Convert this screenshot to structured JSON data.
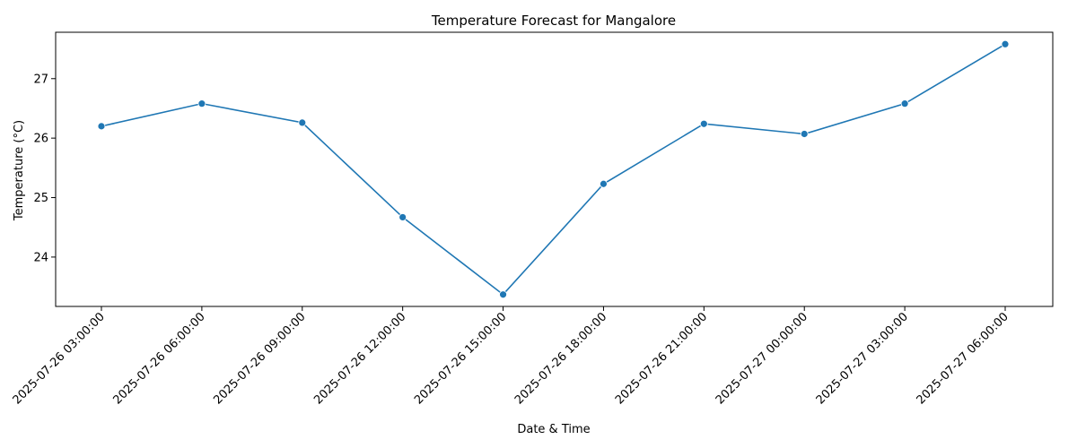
{
  "chart_data": {
    "type": "line",
    "title": "Temperature Forecast for Mangalore",
    "xlabel": "Date & Time",
    "ylabel": "Temperature (°C)",
    "x": [
      "2025-07-26 03:00:00",
      "2025-07-26 06:00:00",
      "2025-07-26 09:00:00",
      "2025-07-26 12:00:00",
      "2025-07-26 15:00:00",
      "2025-07-26 18:00:00",
      "2025-07-26 21:00:00",
      "2025-07-27 00:00:00",
      "2025-07-27 03:00:00",
      "2025-07-27 06:00:00"
    ],
    "series": [
      {
        "values": [
          26.2,
          26.58,
          26.26,
          24.67,
          23.37,
          25.23,
          26.24,
          26.07,
          26.58,
          27.58
        ],
        "color": "#1f77b4",
        "marker": "circle"
      }
    ],
    "yticks": [
      24,
      25,
      26,
      27
    ],
    "ylim": [
      23.17,
      27.78
    ],
    "grid": false,
    "legend": "none"
  }
}
